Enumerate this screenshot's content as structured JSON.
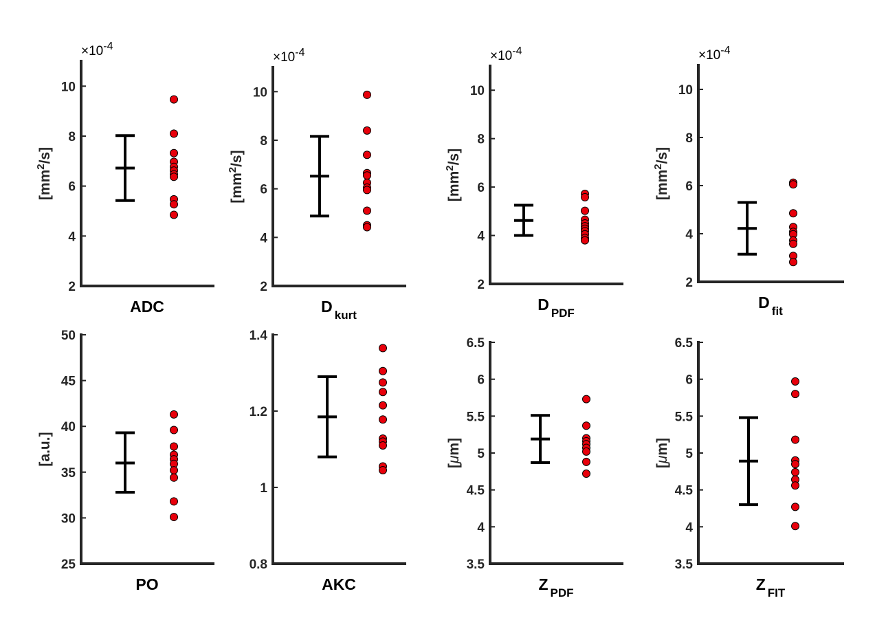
{
  "figure": {
    "point_color": "#e8000b",
    "errorbar_color": "#000000",
    "axis_color": "#262626"
  },
  "chart_data": [
    {
      "type": "scatter",
      "xlabel": {
        "main": "ADC",
        "sub": ""
      },
      "ylabel": {
        "pre": "[mm",
        "sup": "2",
        "post": "/s]"
      },
      "exponent": {
        "cross": "×",
        "base": "10",
        "power": "-4"
      },
      "ylim": [
        2,
        11
      ],
      "yticks": [
        2,
        4,
        6,
        8,
        10
      ],
      "ytick_labels": [
        "2",
        "4",
        "6",
        "8",
        "10"
      ],
      "errorbar": {
        "mean": 6.72,
        "low": 5.42,
        "high": 8.02
      },
      "points": [
        9.47,
        8.1,
        7.32,
        6.97,
        6.77,
        6.62,
        6.47,
        6.37,
        5.47,
        5.27,
        4.85
      ]
    },
    {
      "type": "scatter",
      "xlabel": {
        "main": "D",
        "sub": "kurt"
      },
      "ylabel": {
        "pre": "[mm",
        "sup": "2",
        "post": "/s]"
      },
      "exponent": {
        "cross": "×",
        "base": "10",
        "power": "-4"
      },
      "ylim": [
        2,
        11
      ],
      "yticks": [
        2,
        4,
        6,
        8,
        10
      ],
      "ytick_labels": [
        "2",
        "4",
        "6",
        "8",
        "10"
      ],
      "errorbar": {
        "mean": 6.52,
        "low": 4.88,
        "high": 8.16
      },
      "points": [
        9.87,
        8.4,
        7.4,
        6.65,
        6.55,
        6.25,
        6.05,
        5.95,
        5.1,
        4.5,
        4.42
      ]
    },
    {
      "type": "scatter",
      "xlabel": {
        "main": "D",
        "sub": "PDF"
      },
      "ylabel": {
        "pre": "[mm",
        "sup": "2",
        "post": "/s]"
      },
      "exponent": {
        "cross": "×",
        "base": "10",
        "power": "-4"
      },
      "ylim": [
        2,
        11
      ],
      "yticks": [
        2,
        4,
        6,
        8,
        10
      ],
      "ytick_labels": [
        "2",
        "4",
        "6",
        "8",
        "10"
      ],
      "errorbar": {
        "mean": 4.62,
        "low": 4.0,
        "high": 5.25
      },
      "points": [
        5.72,
        5.58,
        5.02,
        4.65,
        4.5,
        4.38,
        4.28,
        4.18,
        4.05,
        3.9,
        3.8
      ]
    },
    {
      "type": "scatter",
      "xlabel": {
        "main": "D",
        "sub": "fit"
      },
      "ylabel": {
        "pre": "[mm",
        "sup": "2",
        "post": "/s]"
      },
      "exponent": {
        "cross": "×",
        "base": "10",
        "power": "-4"
      },
      "ylim": [
        2,
        11
      ],
      "yticks": [
        2,
        4,
        6,
        8,
        10
      ],
      "ytick_labels": [
        "2",
        "4",
        "6",
        "8",
        "10"
      ],
      "errorbar": {
        "mean": 4.22,
        "low": 3.15,
        "high": 5.3
      },
      "points": [
        6.12,
        6.05,
        4.85,
        4.28,
        4.08,
        3.98,
        3.72,
        3.58,
        3.08,
        2.82
      ]
    },
    {
      "type": "scatter",
      "xlabel": {
        "main": "PO",
        "sub": ""
      },
      "ylabel": {
        "pre": "[a.u.]",
        "sup": "",
        "post": ""
      },
      "exponent": null,
      "ylim": [
        25,
        50
      ],
      "yticks": [
        25,
        30,
        35,
        40,
        45,
        50
      ],
      "ytick_labels": [
        "25",
        "30",
        "35",
        "40",
        "45",
        "50"
      ],
      "errorbar": {
        "mean": 36.0,
        "low": 32.8,
        "high": 39.3
      },
      "points": [
        41.3,
        39.6,
        37.8,
        36.9,
        36.4,
        35.9,
        35.2,
        34.4,
        31.8,
        30.1
      ]
    },
    {
      "type": "scatter",
      "xlabel": {
        "main": "AKC",
        "sub": ""
      },
      "ylabel": {
        "pre": "",
        "sup": "",
        "post": ""
      },
      "exponent": null,
      "ylim": [
        0.8,
        1.4
      ],
      "yticks": [
        0.8,
        1.0,
        1.2,
        1.4
      ],
      "ytick_labels": [
        "0.8",
        "1",
        "1.2",
        "1.4"
      ],
      "errorbar": {
        "mean": 1.185,
        "low": 1.08,
        "high": 1.29
      },
      "points": [
        1.365,
        1.305,
        1.275,
        1.25,
        1.215,
        1.178,
        1.128,
        1.12,
        1.11,
        1.055,
        1.045
      ]
    },
    {
      "type": "scatter",
      "xlabel": {
        "main": "Z",
        "sub": "PDF"
      },
      "ylabel": {
        "pre": "[",
        "mu": "μ",
        "post": "m]"
      },
      "exponent": null,
      "ylim": [
        3.5,
        6.5
      ],
      "yticks": [
        3.5,
        4.0,
        4.5,
        5.0,
        5.5,
        6.0,
        6.5
      ],
      "ytick_labels": [
        "3.5",
        "4",
        "4.5",
        "5",
        "5.5",
        "6",
        "6.5"
      ],
      "errorbar": {
        "mean": 5.19,
        "low": 4.87,
        "high": 5.51
      },
      "points": [
        5.73,
        5.37,
        5.2,
        5.16,
        5.12,
        5.07,
        5.02,
        4.88,
        4.72
      ]
    },
    {
      "type": "scatter",
      "xlabel": {
        "main": "Z",
        "sub": "FIT"
      },
      "ylabel": {
        "pre": "[",
        "mu": "μ",
        "post": "m]"
      },
      "exponent": null,
      "ylim": [
        3.5,
        6.5
      ],
      "yticks": [
        3.5,
        4.0,
        4.5,
        5.0,
        5.5,
        6.0,
        6.5
      ],
      "ytick_labels": [
        "3.5",
        "4",
        "4.5",
        "5",
        "5.5",
        "6",
        "6.5"
      ],
      "errorbar": {
        "mean": 4.89,
        "low": 4.3,
        "high": 5.48
      },
      "points": [
        5.97,
        5.8,
        5.18,
        4.9,
        4.85,
        4.74,
        4.64,
        4.56,
        4.27,
        4.01
      ]
    }
  ]
}
